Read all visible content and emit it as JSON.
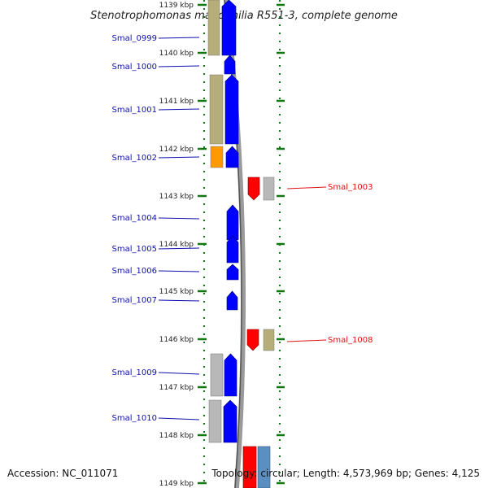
{
  "title": "Stenotrophomonas maltophilia R551-3, complete genome",
  "accession": "Accession: NC_011071",
  "topology": "Topology: circular; Length: 4,573,969 bp; Genes: 4,125",
  "colors": {
    "cds": "#0000ff",
    "rna": "#ff0000",
    "cog_olive": "#b5ad7a",
    "cog_grey": "#b8b8b8",
    "cog_orange": "#ff9900",
    "cog_steelblue": "#5b8fc2",
    "forward_label": "#1010aa",
    "reverse_label": "#dd1111",
    "tick": "#117711"
  },
  "kbp_ticks": [
    "1139 kbp",
    "1140 kbp",
    "1141 kbp",
    "1142 kbp",
    "1143 kbp",
    "1144 kbp",
    "1145 kbp",
    "1146 kbp",
    "1147 kbp",
    "1148 kbp",
    "1149 kbp"
  ],
  "genes_forward": [
    "Smal_0999",
    "Smal_1000",
    "Smal_1001",
    "Smal_1002",
    "Smal_1004",
    "Smal_1005",
    "Smal_1006",
    "Smal_1007",
    "Smal_1009",
    "Smal_1010"
  ],
  "genes_reverse": [
    "Smal_1003",
    "Smal_1008"
  ]
}
